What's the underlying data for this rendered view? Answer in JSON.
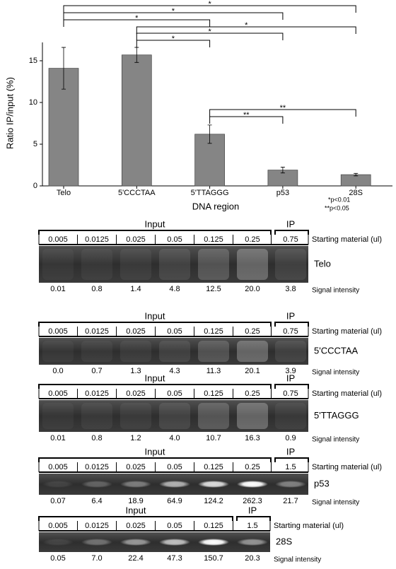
{
  "chart_data": {
    "type": "bar",
    "y_label": "Ratio IP/input (%)",
    "x_label": "DNA region",
    "categories": [
      "Telo",
      "5'CCCTAA",
      "5'TTAGGG",
      "p53",
      "28S"
    ],
    "values": [
      14.1,
      15.7,
      6.2,
      1.9,
      1.35
    ],
    "errors": [
      2.5,
      0.9,
      1.1,
      0.35,
      0.15
    ],
    "color": "#858585",
    "ylim": [
      0,
      17.2
    ],
    "yticks": [
      0,
      5,
      10,
      15
    ],
    "significance": [
      {
        "from": 0,
        "to": 4,
        "label": "*"
      },
      {
        "from": 0,
        "to": 3,
        "label": "*"
      },
      {
        "from": 0,
        "to": 2,
        "label": "*"
      },
      {
        "from": 1,
        "to": 4,
        "label": "*"
      },
      {
        "from": 1,
        "to": 3,
        "label": "*"
      },
      {
        "from": 1,
        "to": 2,
        "label": "*"
      },
      {
        "from": 2,
        "to": 4,
        "label": "**"
      },
      {
        "from": 2,
        "to": 3,
        "label": "**"
      }
    ],
    "notes": [
      "*p<0.01",
      "**p<0.05"
    ]
  },
  "gels": [
    {
      "input_label": "Input",
      "ip_label": "IP",
      "amounts": [
        "0.005",
        "0.0125",
        "0.025",
        "0.05",
        "0.125",
        "0.25",
        "0.75"
      ],
      "amount_caption": "Starting material (ul)",
      "name": "Telo",
      "signals": [
        "0.01",
        "0.8",
        "1.4",
        "4.8",
        "12.5",
        "20.0",
        "3.8"
      ],
      "signal_caption": "Signal intensity"
    },
    {
      "input_label": "Input",
      "ip_label": "IP",
      "amounts": [
        "0.005",
        "0.0125",
        "0.025",
        "0.05",
        "0.125",
        "0.25",
        "0.75"
      ],
      "amount_caption": "Starting material (ul)",
      "name": "5'CCCTAA",
      "signals": [
        "0.0",
        "0.7",
        "1.3",
        "4.3",
        "11.3",
        "20.1",
        "3.9"
      ],
      "signal_caption": "Signal intensity"
    },
    {
      "input_label": "Input",
      "ip_label": "IP",
      "amounts": [
        "0.005",
        "0.0125",
        "0.025",
        "0.05",
        "0.125",
        "0.25",
        "0.75"
      ],
      "amount_caption": "Starting material (ul)",
      "name": "5'TTAGGG",
      "signals": [
        "0.01",
        "0.8",
        "1.2",
        "4.0",
        "10.7",
        "16.3",
        "0.9"
      ],
      "signal_caption": "Signal intensity"
    },
    {
      "input_label": "Input",
      "ip_label": "IP",
      "amounts": [
        "0.005",
        "0.0125",
        "0.025",
        "0.05",
        "0.125",
        "0.25",
        "1.5"
      ],
      "amount_caption": "Starting material (ul)",
      "name": "p53",
      "signals": [
        "0.07",
        "6.4",
        "18.9",
        "64.9",
        "124.2",
        "262.3",
        "21.7"
      ],
      "signal_caption": "Signal intensity"
    },
    {
      "input_label": "Input",
      "ip_label": "IP",
      "amounts": [
        "0.005",
        "0.0125",
        "0.025",
        "0.05",
        "0.125",
        "1.5"
      ],
      "amount_caption": "Starting material (ul)",
      "name": "28S",
      "signals": [
        "0.05",
        "7.0",
        "22.4",
        "47.3",
        "150.7",
        "20.3"
      ],
      "signal_caption": "Signal intensity"
    }
  ]
}
